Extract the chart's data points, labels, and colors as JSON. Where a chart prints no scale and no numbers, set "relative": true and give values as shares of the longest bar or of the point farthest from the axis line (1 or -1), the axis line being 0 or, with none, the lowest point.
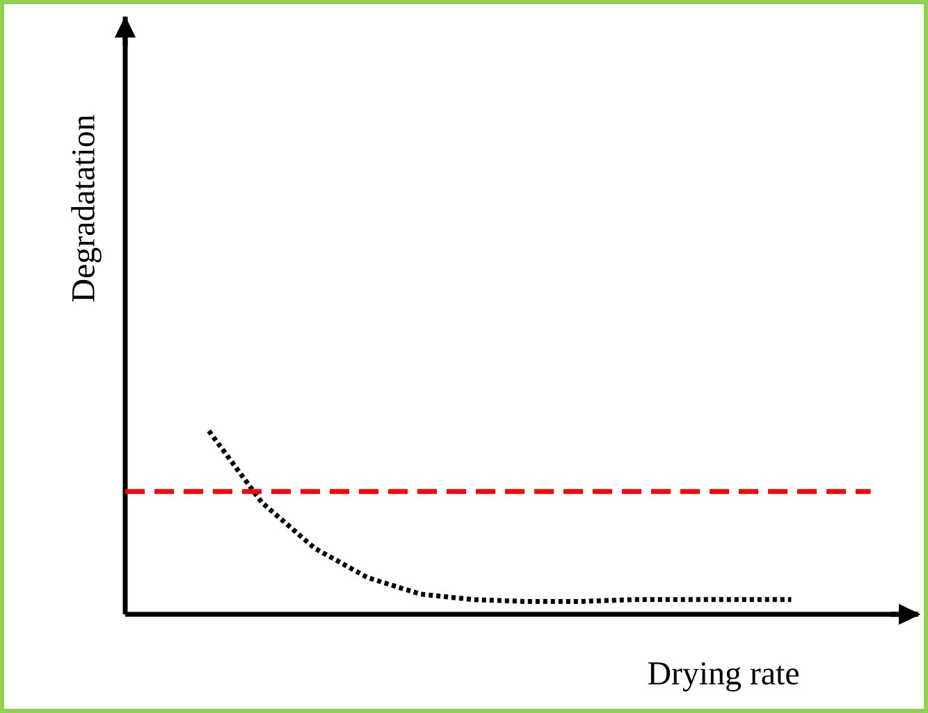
{
  "chart_data": {
    "type": "line",
    "relative": true,
    "xlabel": "Drying rate",
    "ylabel": "Degradatation",
    "categories": [
      null,
      null,
      null,
      null,
      null,
      null,
      null,
      null,
      null,
      null,
      null,
      null
    ],
    "values": [
      1,
      0.61,
      0.36,
      0.2,
      0.11,
      0.08,
      0.07,
      0.07,
      0.08,
      0.08,
      0.08,
      0.08
    ],
    "color": "#000000",
    "marker": "none",
    "line_style": "dotted",
    "ref_lines": [
      {
        "axis": "y",
        "value": 0.67,
        "color": "#ff0000",
        "line_style": "dashed"
      }
    ]
  }
}
